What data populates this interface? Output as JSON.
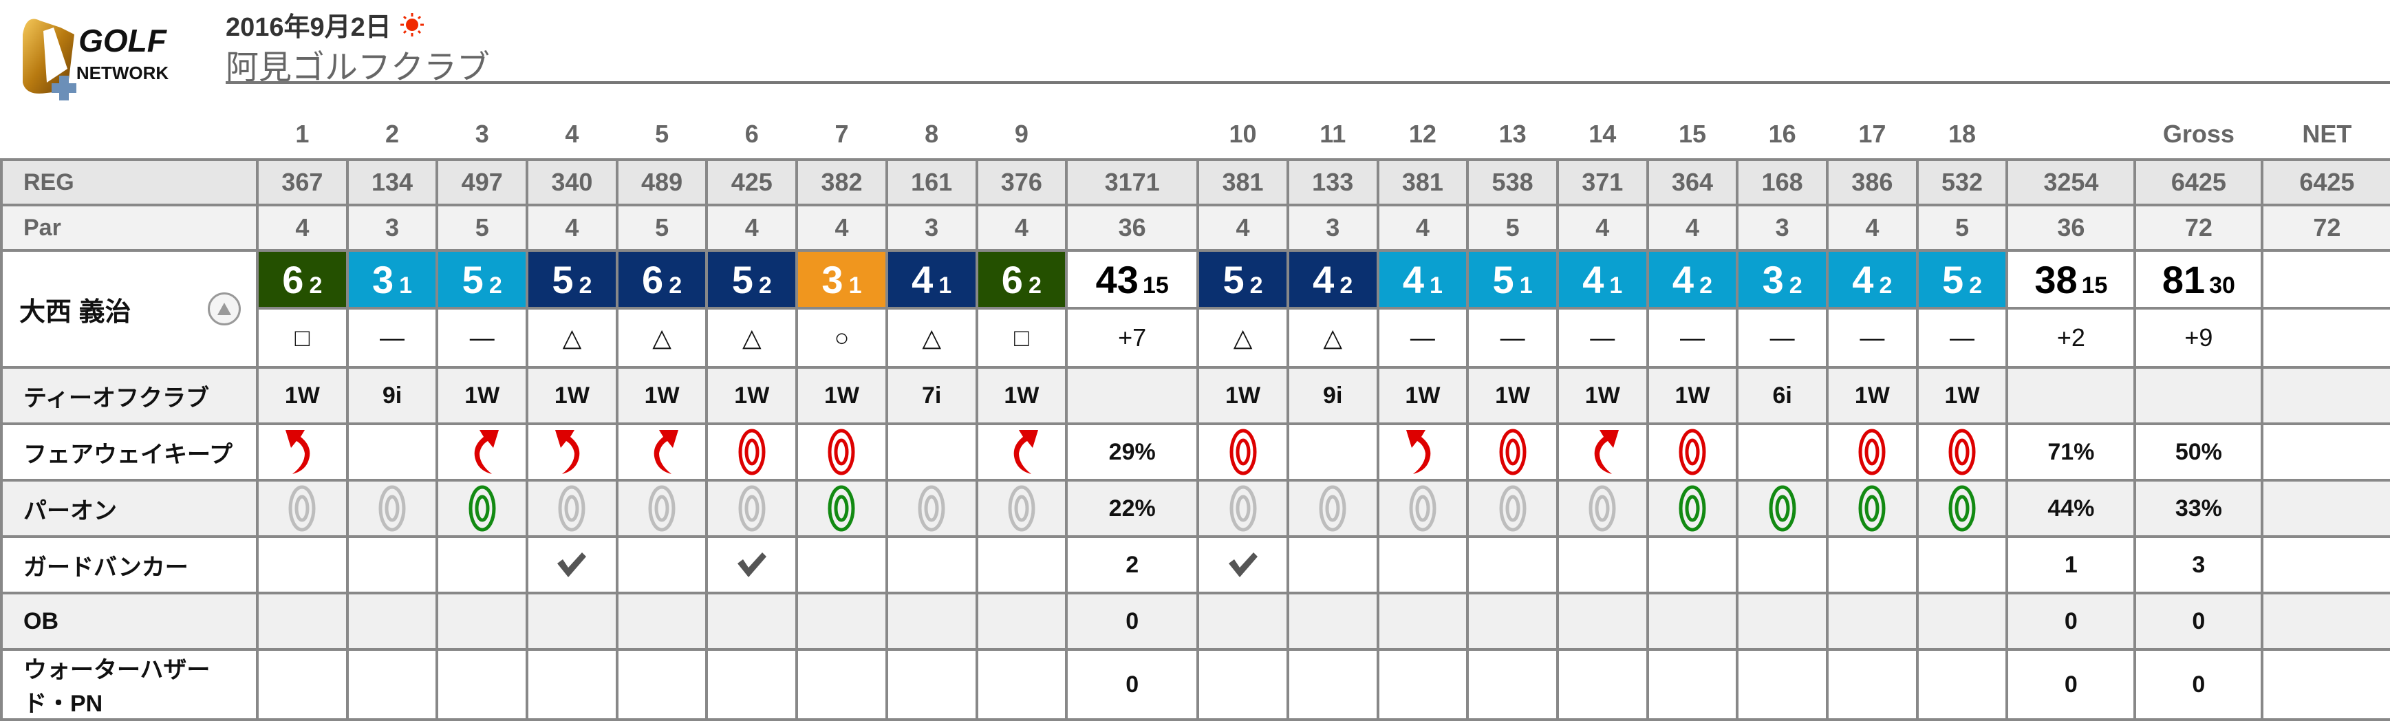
{
  "header": {
    "logo_text": "GOLF NETWORK",
    "date": "2016年9月2日",
    "weather_icon": "sun-icon",
    "course_name": "阿見ゴルフクラブ"
  },
  "columns": {
    "holes": [
      "1",
      "2",
      "3",
      "4",
      "5",
      "6",
      "7",
      "8",
      "9",
      "10",
      "11",
      "12",
      "13",
      "14",
      "15",
      "16",
      "17",
      "18"
    ],
    "out": "",
    "in": "",
    "gross": "Gross",
    "net": "NET"
  },
  "reg": {
    "label": "REG",
    "holes": [
      "367",
      "134",
      "497",
      "340",
      "489",
      "425",
      "382",
      "161",
      "376",
      "381",
      "133",
      "381",
      "538",
      "371",
      "364",
      "168",
      "386",
      "532"
    ],
    "out": "3171",
    "in": "3254",
    "gross": "6425",
    "net": "6425"
  },
  "par": {
    "label": "Par",
    "holes": [
      "4",
      "3",
      "5",
      "4",
      "5",
      "4",
      "4",
      "3",
      "4",
      "4",
      "3",
      "4",
      "5",
      "4",
      "4",
      "3",
      "4",
      "5"
    ],
    "out": "36",
    "in": "36",
    "gross": "72",
    "net": "72"
  },
  "player": {
    "name": "大西 義治",
    "sort_icon": "triangle-up-icon",
    "scores": [
      {
        "strokes": "6",
        "putts": "2"
      },
      {
        "strokes": "3",
        "putts": "1"
      },
      {
        "strokes": "5",
        "putts": "2"
      },
      {
        "strokes": "5",
        "putts": "2"
      },
      {
        "strokes": "6",
        "putts": "2"
      },
      {
        "strokes": "5",
        "putts": "2"
      },
      {
        "strokes": "3",
        "putts": "1"
      },
      {
        "strokes": "4",
        "putts": "1"
      },
      {
        "strokes": "6",
        "putts": "2"
      },
      {
        "strokes": "5",
        "putts": "2"
      },
      {
        "strokes": "4",
        "putts": "2"
      },
      {
        "strokes": "4",
        "putts": "1"
      },
      {
        "strokes": "5",
        "putts": "1"
      },
      {
        "strokes": "4",
        "putts": "1"
      },
      {
        "strokes": "4",
        "putts": "2"
      },
      {
        "strokes": "3",
        "putts": "2"
      },
      {
        "strokes": "4",
        "putts": "2"
      },
      {
        "strokes": "5",
        "putts": "2"
      }
    ],
    "out": {
      "strokes": "43",
      "putts": "15"
    },
    "in": {
      "strokes": "38",
      "putts": "15"
    },
    "gross": {
      "strokes": "81",
      "putts": "30"
    },
    "marks": [
      "□",
      "—",
      "—",
      "△",
      "△",
      "△",
      "○",
      "△",
      "□",
      "△",
      "△",
      "—",
      "—",
      "—",
      "—",
      "—",
      "—",
      "—"
    ],
    "out_diff": "+7",
    "in_diff": "+2",
    "gross_diff": "+9"
  },
  "score_colors": {
    "birdie": "#f0961e",
    "par": "#0aa0d0",
    "bogey": "#0a3070",
    "double_bogey": "#245000"
  },
  "stats": {
    "tee_club": {
      "label": "ティーオフクラブ",
      "holes": [
        "1W",
        "9i",
        "1W",
        "1W",
        "1W",
        "1W",
        "1W",
        "7i",
        "1W",
        "1W",
        "9i",
        "1W",
        "1W",
        "1W",
        "1W",
        "6i",
        "1W",
        "1W"
      ],
      "out": "",
      "in": "",
      "gross": ""
    },
    "fairway": {
      "label": "フェアウェイキープ",
      "holes": [
        "left",
        "",
        "right",
        "left",
        "right",
        "hit",
        "hit",
        "",
        "right",
        "hit",
        "",
        "left",
        "hit",
        "right",
        "hit",
        "",
        "hit",
        "hit"
      ],
      "out": "29%",
      "in": "71%",
      "gross": "50%"
    },
    "green_in_regulation": {
      "label": "パーオン",
      "holes": [
        false,
        false,
        true,
        false,
        false,
        false,
        true,
        false,
        false,
        false,
        false,
        false,
        false,
        false,
        true,
        true,
        true,
        true
      ],
      "out": "22%",
      "in": "44%",
      "gross": "33%"
    },
    "guard_bunker": {
      "label": "ガードバンカー",
      "holes": [
        false,
        false,
        false,
        true,
        false,
        true,
        false,
        false,
        false,
        true,
        false,
        false,
        false,
        false,
        false,
        false,
        false,
        false
      ],
      "out": "2",
      "in": "1",
      "gross": "3"
    },
    "ob": {
      "label": "OB",
      "out": "0",
      "in": "0",
      "gross": "0"
    },
    "water_hazard": {
      "label": "ウォーターハザード・PN",
      "out": "0",
      "in": "0",
      "gross": "0"
    }
  },
  "icon_colors": {
    "fairway": "#dd0000",
    "green_hit": "#128a12",
    "green_miss": "#bdbdbd",
    "bunker_check": "#555555"
  }
}
